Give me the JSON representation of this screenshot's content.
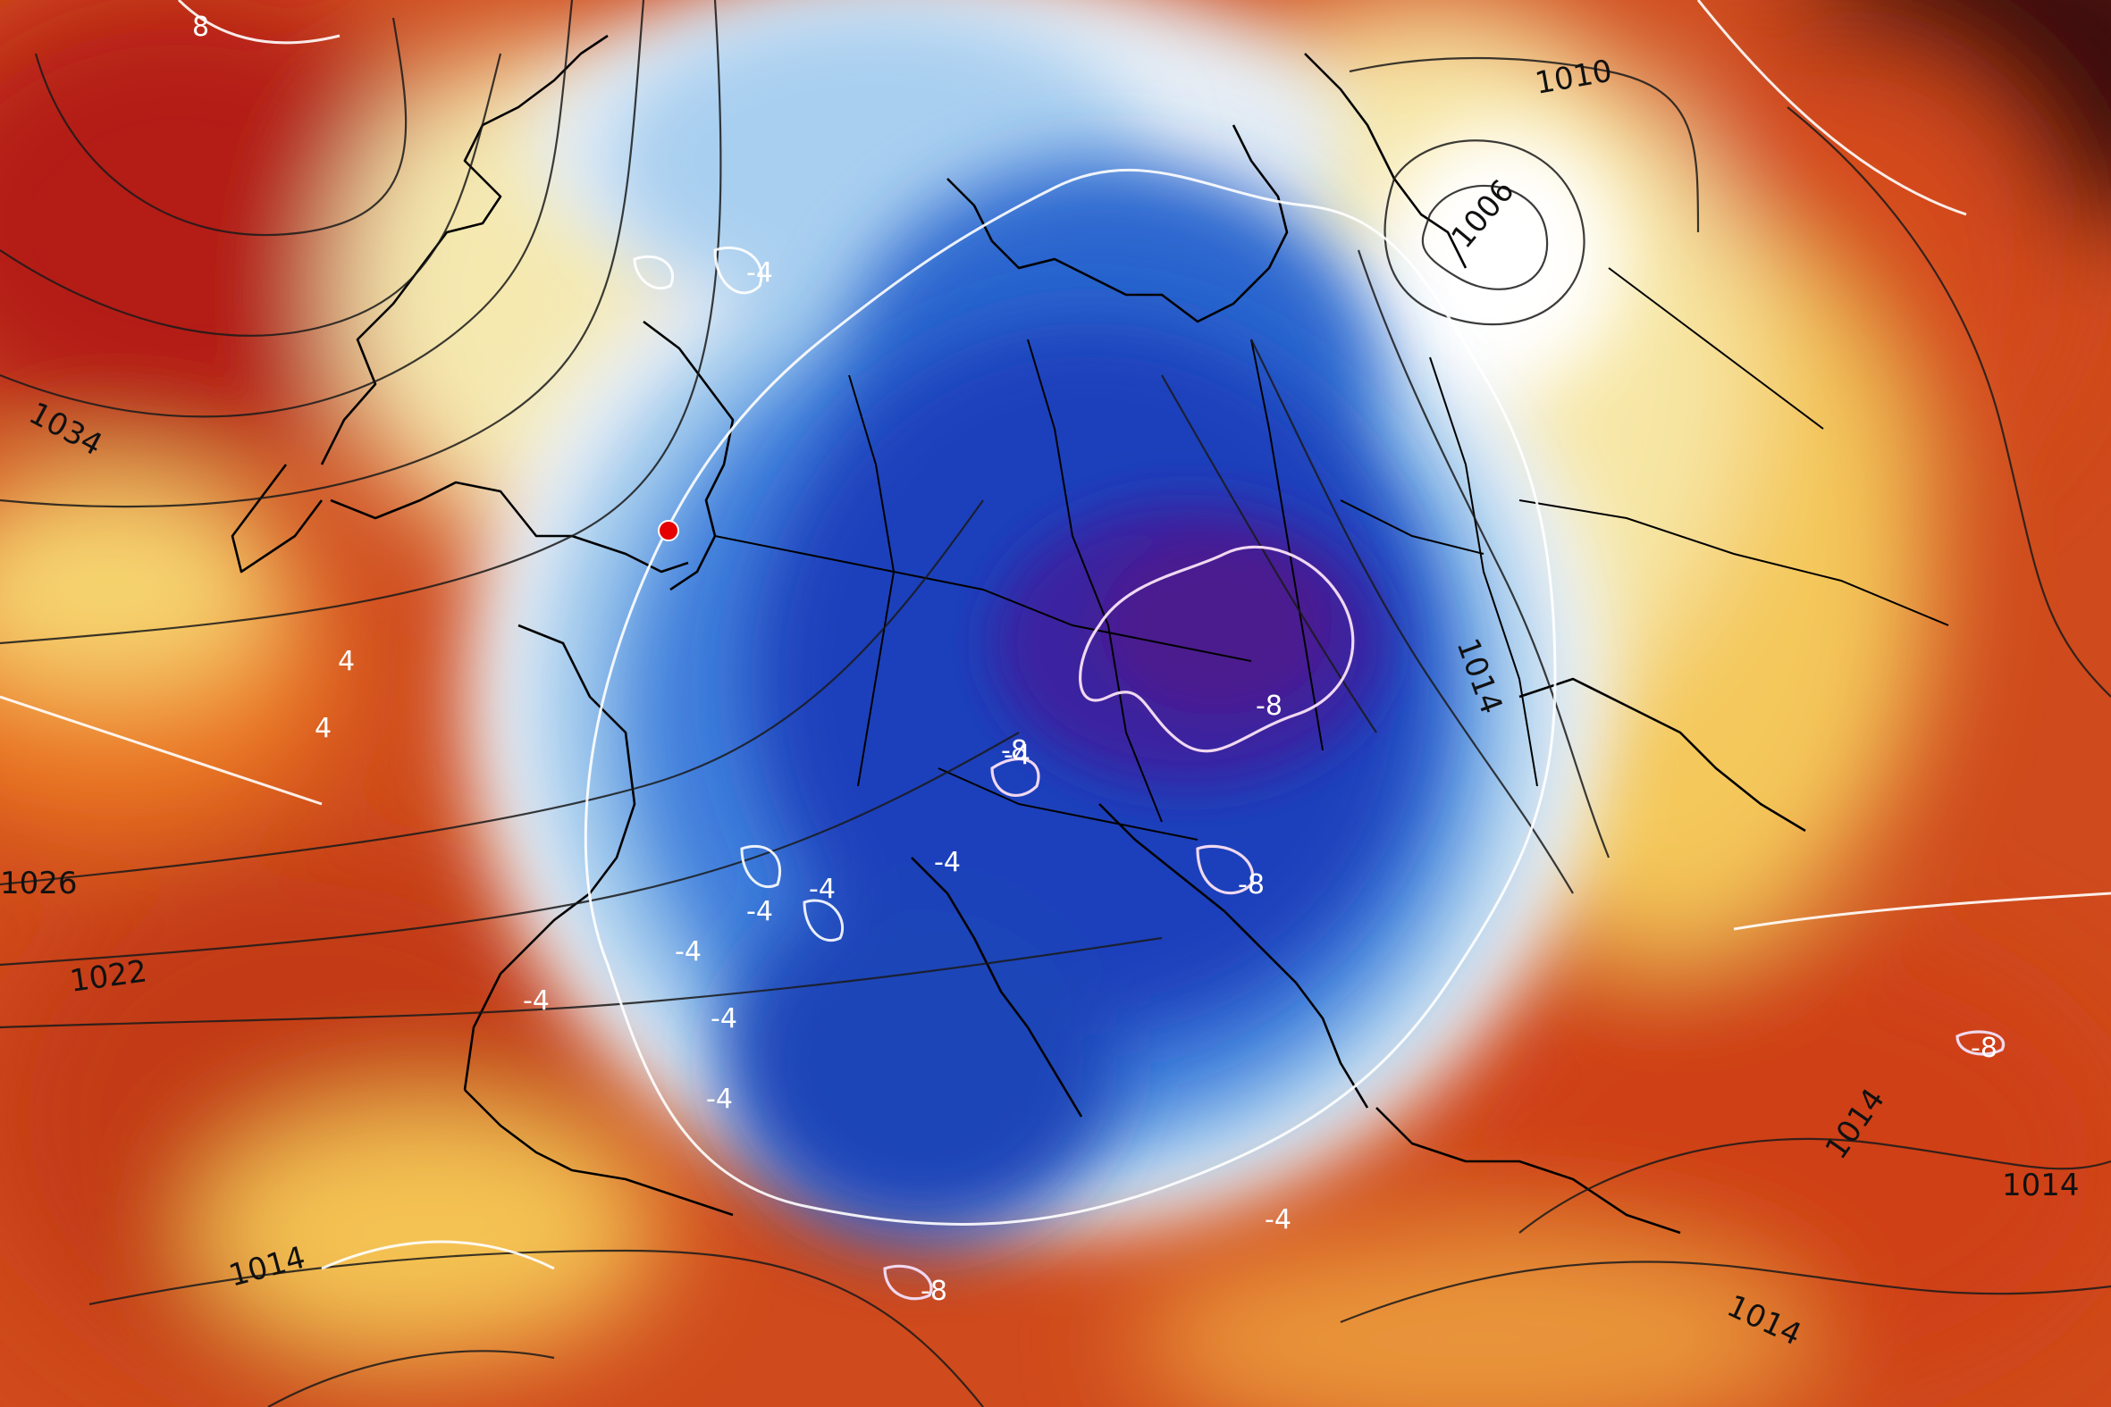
{
  "colors": {
    "warm_dark": "#8e0f10",
    "warm": "#d6401a",
    "orange": "#ec8a2a",
    "yellow": "#f6d36a",
    "white": "#f4f7fb",
    "light_blue": "#8fc1e8",
    "blue": "#2f6fd6",
    "deep_blue": "#1636b2",
    "purple": "#4a1a8a",
    "marker": "#e60000"
  },
  "isobar_labels": [
    "1010",
    "1006",
    "1034",
    "1026",
    "1022",
    "1014",
    "1014",
    "1014",
    "1014",
    "1014"
  ],
  "temp_labels": [
    "8",
    "-4",
    "-4",
    "-4",
    "-4",
    "-4",
    "-4",
    "-4",
    "-4",
    "-4",
    "-4",
    "-8",
    "-8",
    "-8",
    "-8",
    "-8",
    "4",
    "4"
  ],
  "marker": {
    "name": "location-marker"
  }
}
